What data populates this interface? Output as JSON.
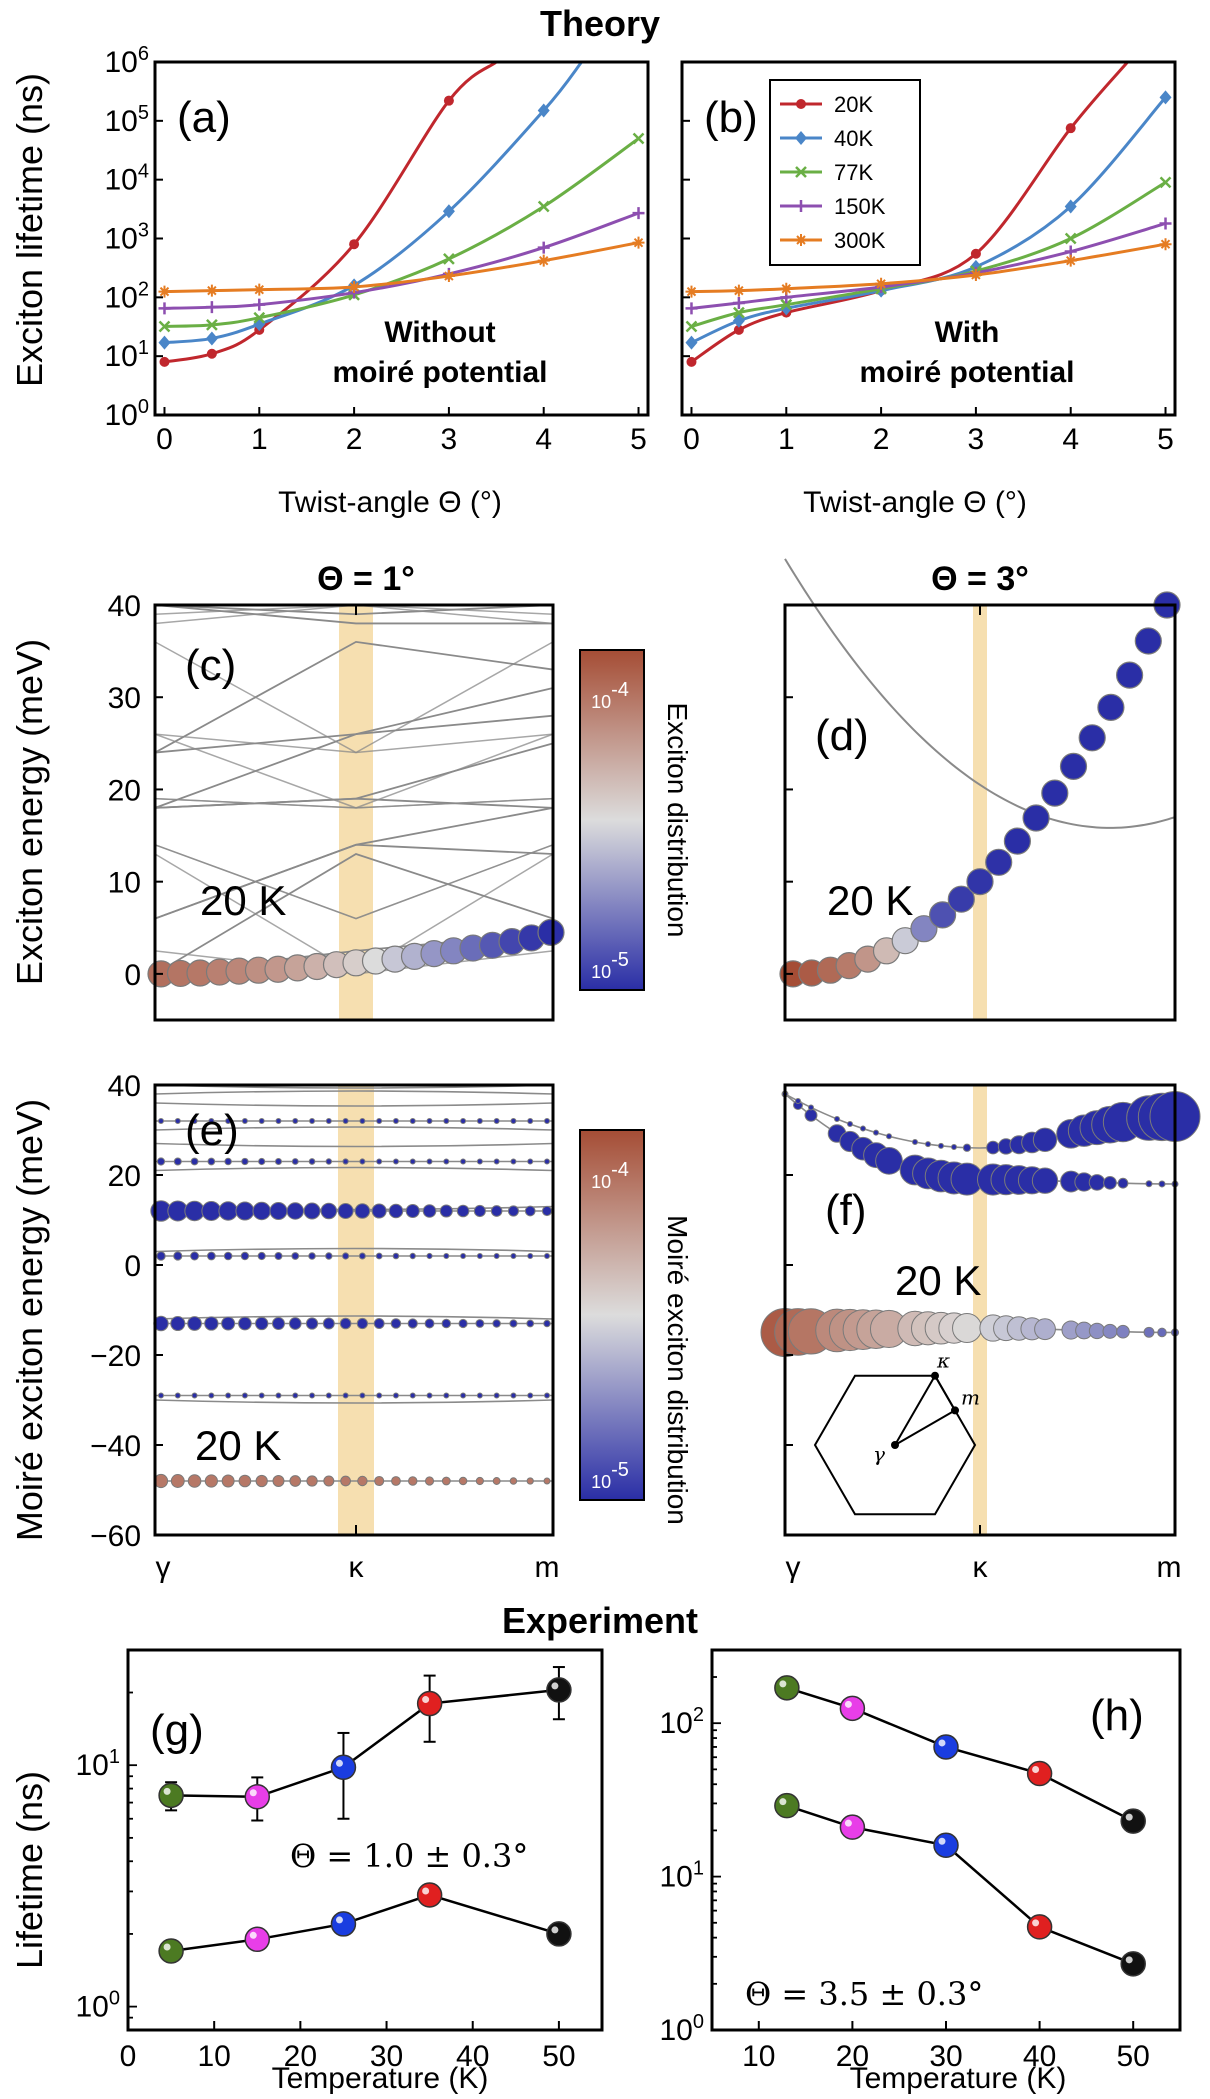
{
  "colors": {
    "20K": "#c0272d",
    "40K": "#4a86c8",
    "77K": "#6aaf45",
    "150K": "#8d4fb0",
    "300K": "#e57c22",
    "band": "#f6dfb0",
    "bandline": "#8a8a8a",
    "cold": "#2a2ea6",
    "mid": "#dcdcdc",
    "warm": "#a54d35",
    "green": "#4c7a22",
    "magenta": "#e83ee8",
    "blue": "#1a3de0",
    "red": "#e02020",
    "black": "#111111"
  },
  "sections": {
    "theory": "Theory",
    "experiment": "Experiment"
  },
  "chart_data": [
    {
      "id": "a",
      "type": "line",
      "panel_label": "(a)",
      "title": "",
      "xlabel": "Twist-angle Θ (°)",
      "ylabel": "Exciton lifetime (ns)",
      "yscale": "log",
      "xlim": [
        -0.1,
        5.1
      ],
      "ylim": [
        1,
        1000000
      ],
      "xticks": [
        "0",
        "1",
        "2",
        "3",
        "4",
        "5"
      ],
      "yticks": [
        {
          "base": "10",
          "exp": "0"
        },
        {
          "base": "10",
          "exp": "1"
        },
        {
          "base": "10",
          "exp": "2"
        },
        {
          "base": "10",
          "exp": "3"
        },
        {
          "base": "10",
          "exp": "4"
        },
        {
          "base": "10",
          "exp": "5"
        },
        {
          "base": "10",
          "exp": "6"
        }
      ],
      "annotation": [
        "Without",
        "moiré potential"
      ],
      "series": [
        {
          "name": "20K",
          "marker": "circle",
          "x": [
            0,
            0.5,
            1,
            2,
            3,
            3.5
          ],
          "values": [
            8,
            11,
            28,
            800,
            220000,
            1000000
          ]
        },
        {
          "name": "40K",
          "marker": "diamond",
          "x": [
            0,
            0.5,
            1,
            2,
            3,
            4,
            4.4
          ],
          "values": [
            17,
            20,
            35,
            160,
            2900,
            150000,
            1000000
          ]
        },
        {
          "name": "77K",
          "marker": "x",
          "x": [
            0,
            0.5,
            1,
            2,
            3,
            4,
            5
          ],
          "values": [
            32,
            34,
            45,
            110,
            450,
            3500,
            50000
          ]
        },
        {
          "name": "150K",
          "marker": "plus",
          "x": [
            0,
            0.5,
            1,
            2,
            3,
            4,
            5
          ],
          "values": [
            65,
            68,
            75,
            120,
            250,
            700,
            2700
          ]
        },
        {
          "name": "300K",
          "marker": "star",
          "x": [
            0,
            0.5,
            1,
            2,
            3,
            4,
            5
          ],
          "values": [
            125,
            130,
            135,
            150,
            230,
            420,
            850
          ]
        }
      ]
    },
    {
      "id": "b",
      "type": "line",
      "panel_label": "(b)",
      "title": "",
      "xlabel": "Twist-angle Θ (°)",
      "ylabel": "",
      "yscale": "log",
      "xlim": [
        -0.1,
        5.1
      ],
      "ylim": [
        1,
        1000000
      ],
      "xticks": [
        "0",
        "1",
        "2",
        "3",
        "4",
        "5"
      ],
      "annotation": [
        "With",
        "moiré potential"
      ],
      "legend": "top-right",
      "series": [
        {
          "name": "20K",
          "marker": "circle",
          "x": [
            0,
            0.5,
            1,
            2,
            3,
            4,
            4.6
          ],
          "values": [
            8,
            28,
            55,
            130,
            550,
            75000,
            1000000
          ]
        },
        {
          "name": "40K",
          "marker": "diamond",
          "x": [
            0,
            0.5,
            1,
            2,
            3,
            4,
            5
          ],
          "values": [
            17,
            40,
            65,
            130,
            330,
            3500,
            250000
          ]
        },
        {
          "name": "77K",
          "marker": "x",
          "x": [
            0,
            0.5,
            1,
            2,
            3,
            4,
            5
          ],
          "values": [
            32,
            55,
            75,
            140,
            280,
            1000,
            9000
          ]
        },
        {
          "name": "150K",
          "marker": "plus",
          "x": [
            0,
            0.5,
            1,
            2,
            3,
            4,
            5
          ],
          "values": [
            65,
            80,
            100,
            150,
            260,
            600,
            1800
          ]
        },
        {
          "name": "300K",
          "marker": "star",
          "x": [
            0,
            0.5,
            1,
            2,
            3,
            4,
            5
          ],
          "values": [
            125,
            130,
            140,
            170,
            240,
            420,
            800
          ]
        }
      ]
    },
    {
      "id": "c",
      "type": "scatter",
      "panel_label": "(c)",
      "title": "Θ = 1°",
      "ylabel": "Exciton energy (meV)",
      "ylim": [
        -5,
        40
      ],
      "yticks": [
        "0",
        "10",
        "20",
        "30",
        "40"
      ],
      "temperature": "20 K",
      "colorbar": {
        "label": "Exciton distribution",
        "max": {
          "base": "10",
          "exp": "-4"
        },
        "min": {
          "base": "10",
          "exp": "-5"
        }
      },
      "highlight_at": "κ",
      "bands_gamma": [
        0,
        0,
        6,
        6,
        18,
        18,
        18,
        24,
        24,
        40,
        40
      ],
      "bands_kappa": [
        2.5,
        13,
        14,
        14,
        19,
        19,
        26,
        26,
        36,
        38,
        39
      ],
      "bands_m": [
        4.5,
        6,
        13,
        18,
        18,
        25,
        28,
        31,
        33,
        38,
        40
      ],
      "points": {
        "x": [
          0,
          0.05,
          0.1,
          0.15,
          0.2,
          0.25,
          0.3,
          0.35,
          0.4,
          0.45,
          0.5,
          0.55,
          0.6,
          0.65,
          0.7,
          0.75,
          0.8,
          0.85,
          0.9,
          0.95,
          1.0
        ],
        "y": [
          0,
          0.05,
          0.1,
          0.2,
          0.3,
          0.4,
          0.5,
          0.65,
          0.8,
          1.0,
          1.2,
          1.4,
          1.6,
          1.9,
          2.2,
          2.5,
          2.8,
          3.1,
          3.5,
          3.9,
          4.5
        ],
        "log_density": [
          0.88,
          0.86,
          0.85,
          0.82,
          0.8,
          0.77,
          0.74,
          0.7,
          0.65,
          0.6,
          0.55,
          0.5,
          0.44,
          0.38,
          0.3,
          0.25,
          0.18,
          0.12,
          0.07,
          0.03,
          0.0
        ]
      }
    },
    {
      "id": "d",
      "type": "scatter",
      "panel_label": "(d)",
      "title": "Θ = 3°",
      "ylim": [
        -5,
        40
      ],
      "temperature": "20 K",
      "highlight_at": "κ",
      "points": {
        "x": [
          0,
          0.05,
          0.1,
          0.15,
          0.2,
          0.25,
          0.3,
          0.35,
          0.4,
          0.45,
          0.5,
          0.55,
          0.6,
          0.65,
          0.7,
          0.75,
          0.8,
          0.85,
          0.9,
          0.95,
          1.0
        ],
        "y": [
          0,
          0.1,
          0.4,
          0.9,
          1.6,
          2.5,
          3.6,
          4.9,
          6.4,
          8.1,
          10.0,
          12.1,
          14.4,
          16.9,
          19.6,
          22.5,
          25.6,
          28.9,
          32.4,
          36.1,
          40.0
        ],
        "log_density": [
          1.0,
          0.95,
          0.9,
          0.84,
          0.75,
          0.62,
          0.45,
          0.25,
          0.1,
          0.04,
          0.02,
          0.01,
          0,
          0,
          0,
          0,
          0,
          0,
          0,
          0,
          0
        ]
      }
    },
    {
      "id": "e",
      "type": "scatter",
      "panel_label": "(e)",
      "xlabel": "",
      "ylabel": "Moiré exciton energy (meV)",
      "ylim": [
        -60,
        40
      ],
      "xticks": [
        "γ",
        "κ",
        "m"
      ],
      "yticks": [
        "−60",
        "−40",
        "−20",
        "0",
        "20",
        "40"
      ],
      "temperature": "20 K",
      "colorbar": {
        "label": "Moiré exciton distribution",
        "max": {
          "base": "10",
          "exp": "-4"
        },
        "min": {
          "base": "10",
          "exp": "-5"
        }
      },
      "highlight_at": "κ",
      "bands": [
        {
          "y": -48,
          "log_density": 0.85,
          "size": 0.55
        },
        {
          "y": -29,
          "log_density": 0.0,
          "size": 0.2
        },
        {
          "y": -13,
          "log_density": 0.0,
          "size": 0.6
        },
        {
          "y": 2,
          "log_density": 0.0,
          "size": 0.35
        },
        {
          "y": 12,
          "log_density": 0.0,
          "size": 0.85
        },
        {
          "y": 23,
          "log_density": 0.0,
          "size": 0.3
        },
        {
          "y": 32,
          "log_density": 0.0,
          "size": 0.2
        }
      ],
      "grey_lines": [
        3,
        13,
        21,
        27,
        30,
        36,
        38,
        40,
        -12,
        -30
      ]
    },
    {
      "id": "f",
      "type": "scatter",
      "panel_label": "(f)",
      "ylim": [
        -60,
        40
      ],
      "xticks": [
        "γ",
        "κ",
        "m"
      ],
      "temperature": "20 K",
      "highlight_at": "κ",
      "bands": [
        {
          "name": "lower",
          "y_gamma": -15,
          "y_kappa": -14,
          "y_m": -15,
          "log_density_gamma": 0.95,
          "log_density_m": 0.15
        },
        {
          "name": "upper1",
          "y_gamma": 38,
          "y_kappa": 19,
          "y_m": 18,
          "log_density_gamma": 0.0,
          "log_density_m": 0.0
        },
        {
          "name": "upper2",
          "y_gamma": 38,
          "y_kappa": 26,
          "y_m": 33,
          "log_density_gamma": 0.0,
          "log_density_m": 0.0
        }
      ],
      "inset_labels": [
        "κ",
        "m",
        "γ"
      ]
    },
    {
      "id": "g",
      "type": "scatter",
      "panel_label": "(g)",
      "xlabel": "Temperature (K)",
      "ylabel": "Lifetime (ns)",
      "yscale": "log",
      "xlim": [
        0,
        55
      ],
      "ylim": [
        0.8,
        30
      ],
      "xticks": [
        "0",
        "10",
        "20",
        "30",
        "40",
        "50"
      ],
      "yticks": [
        {
          "base": "10",
          "exp": "0"
        },
        {
          "base": "10",
          "exp": "1"
        }
      ],
      "annotation": "Θ = 1.0 ± 0.3°",
      "series": [
        {
          "name": "upper",
          "x": [
            5,
            15,
            25,
            35,
            50
          ],
          "values": [
            7.5,
            7.4,
            9.8,
            18.0,
            20.5
          ],
          "err": [
            1.0,
            1.5,
            3.8,
            5.5,
            5.0
          ]
        },
        {
          "name": "lower",
          "x": [
            5,
            15,
            25,
            35,
            50
          ],
          "values": [
            1.7,
            1.9,
            2.2,
            2.9,
            2.0
          ]
        }
      ],
      "point_colors": [
        "green",
        "magenta",
        "blue",
        "red",
        "black"
      ]
    },
    {
      "id": "h",
      "type": "scatter",
      "panel_label": "(h)",
      "xlabel": "Temperature (K)",
      "ylabel": "",
      "yscale": "log",
      "xlim": [
        5,
        55
      ],
      "ylim": [
        1,
        300
      ],
      "xticks": [
        "10",
        "20",
        "30",
        "40",
        "50"
      ],
      "yticks": [
        {
          "base": "10",
          "exp": "0"
        },
        {
          "base": "10",
          "exp": "1"
        },
        {
          "base": "10",
          "exp": "2"
        }
      ],
      "annotation": "Θ = 3.5 ± 0.3°",
      "series": [
        {
          "name": "upper",
          "x": [
            13,
            20,
            30,
            40,
            50
          ],
          "values": [
            170,
            125,
            70,
            47,
            23
          ]
        },
        {
          "name": "lower",
          "x": [
            13,
            20,
            30,
            40,
            50
          ],
          "values": [
            29,
            21,
            16,
            4.7,
            2.7
          ]
        }
      ],
      "point_colors": [
        "green",
        "magenta",
        "blue",
        "red",
        "black"
      ]
    }
  ]
}
